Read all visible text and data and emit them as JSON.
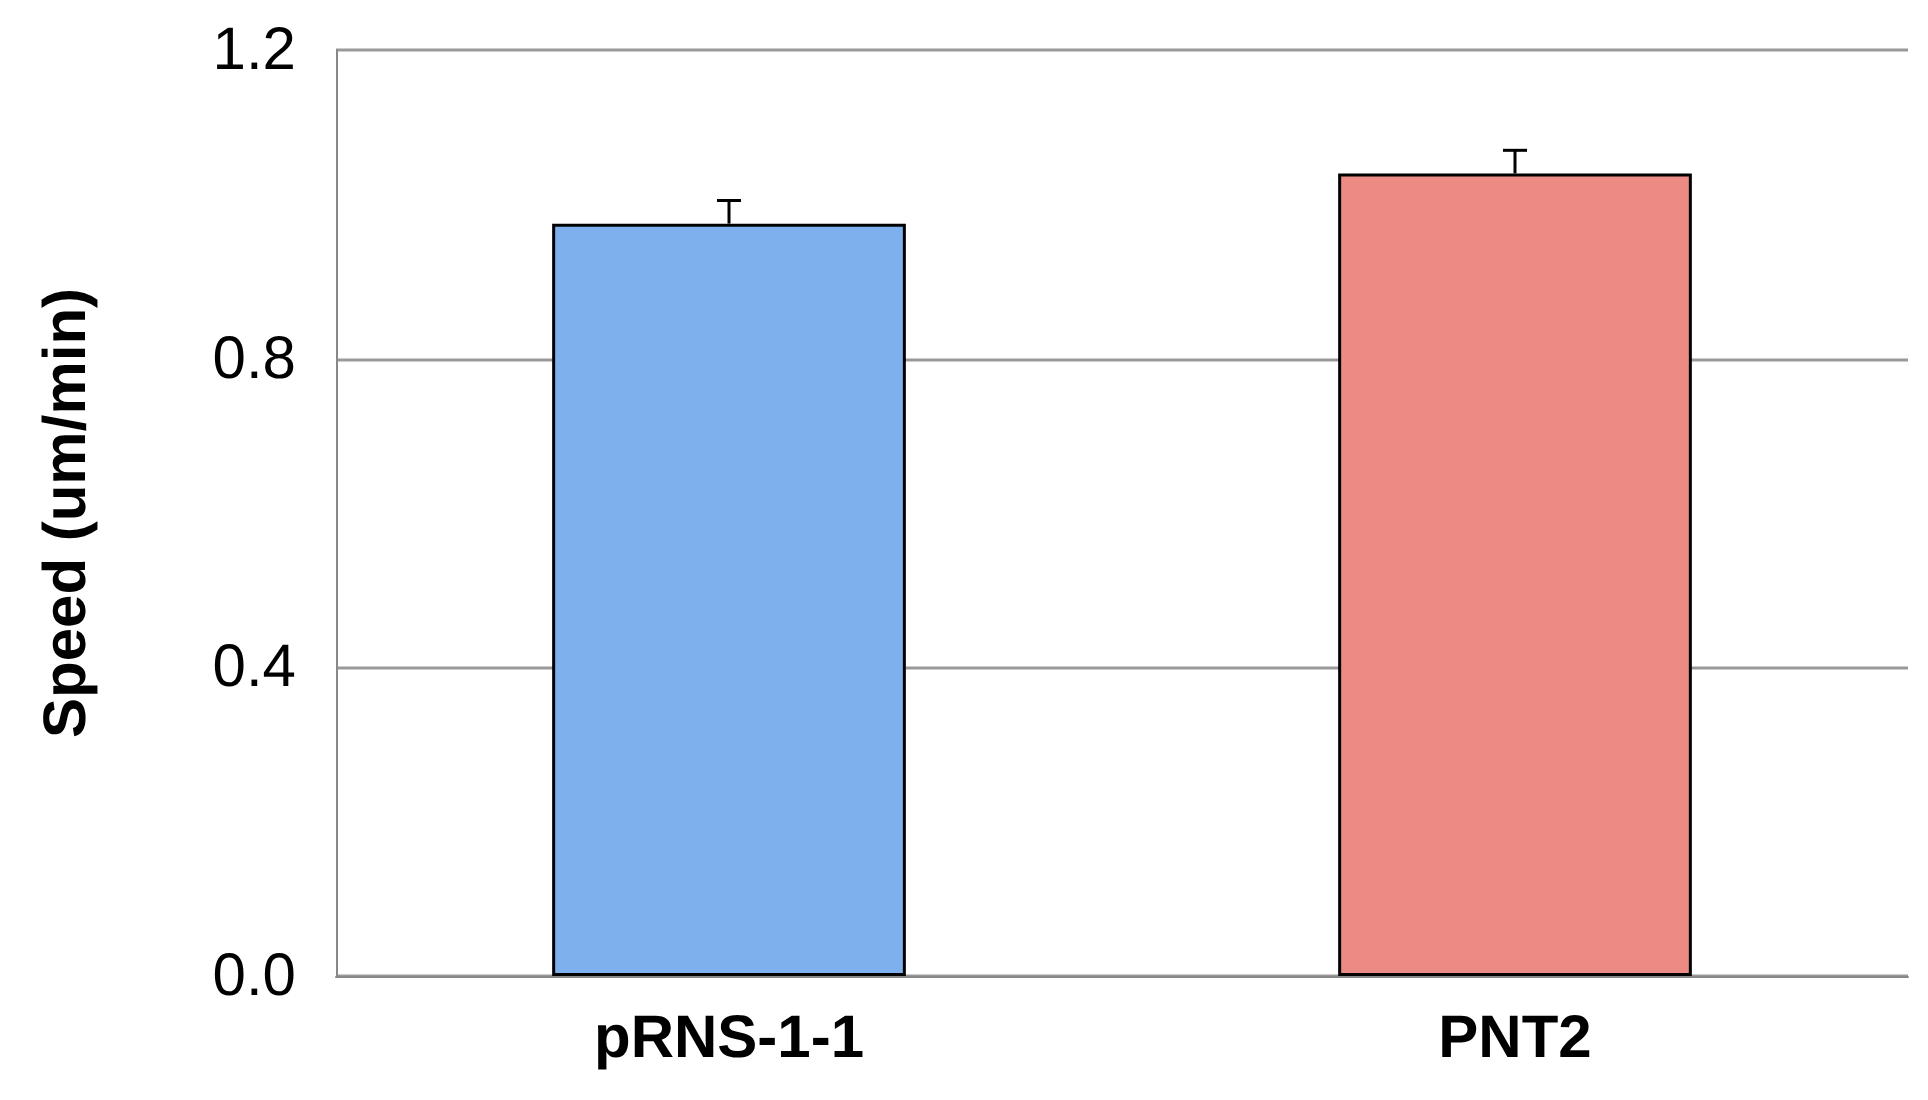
{
  "chart_data": {
    "type": "bar",
    "ylabel": "Speed (um/min)",
    "categories": [
      "pRNS-1-1",
      "PNT2"
    ],
    "values": [
      0.975,
      1.04
    ],
    "colors": [
      "#7eb0ee",
      "#ec8a84"
    ],
    "errors": [
      [
        0.975,
        1.005
      ],
      [
        1.04,
        1.07
      ]
    ],
    "ylim": [
      0,
      1.2
    ],
    "yticks": [
      "0.0",
      0.4,
      0.8,
      1.2
    ],
    "grid": "y"
  }
}
